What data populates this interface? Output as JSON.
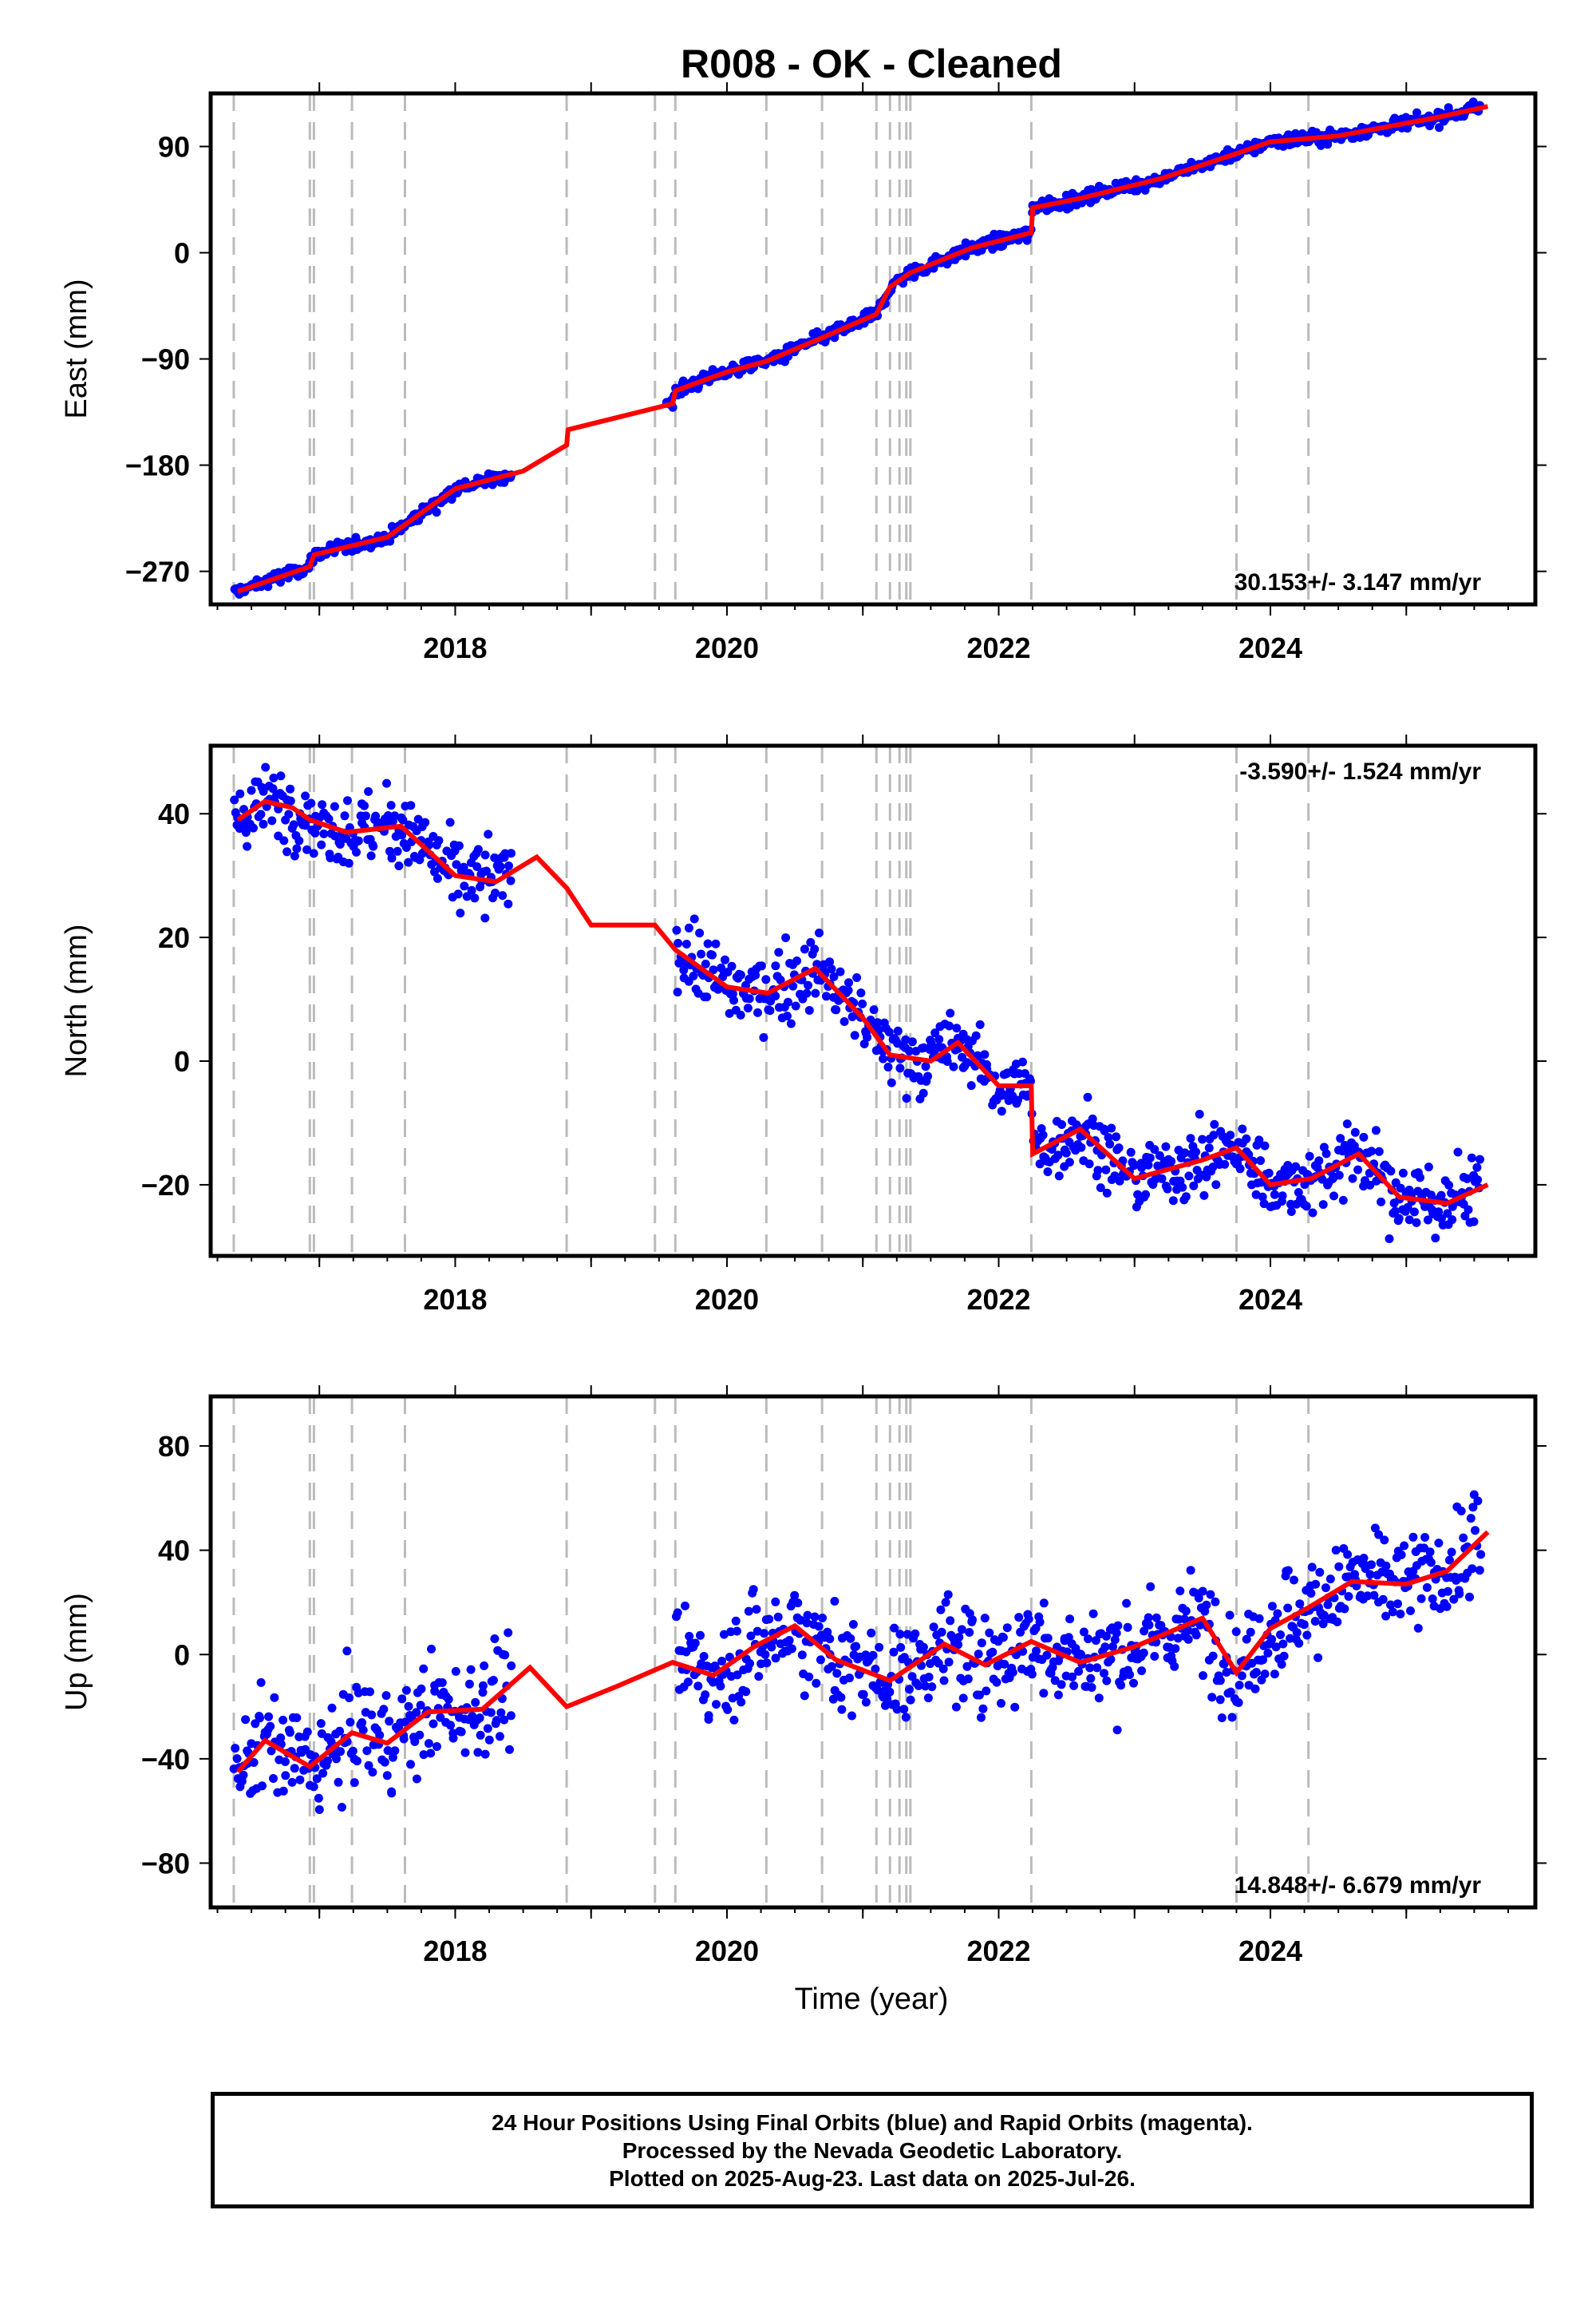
{
  "title": "R008  - OK - Cleaned",
  "xlabel": "Time (year)",
  "caption": [
    "24 Hour Positions Using Final Orbits (blue) and Rapid Orbits (magenta).",
    "Processed by the Nevada Geodetic Laboratory.",
    "Plotted on 2025-Aug-23. Last data on 2025-Jul-26."
  ],
  "colors": {
    "data": "#0000ff",
    "model": "#ff0000",
    "events": "#bbbbbb",
    "frame": "#000000"
  },
  "chart_data": [
    {
      "type": "scatter",
      "ylabel": "East (mm)",
      "rate_label": "30.153+/- 3.147 mm/yr",
      "rate_position": "bottom-right",
      "xlim": [
        2016.2,
        2025.95
      ],
      "ylim": [
        -298,
        135
      ],
      "x_ticks": [
        "2018",
        "2020",
        "2022",
        "2024"
      ],
      "y_ticks": [
        "90",
        "0",
        "−90",
        "−180",
        "−270"
      ],
      "y_tick_values": [
        90,
        0,
        -90,
        -180,
        -270
      ],
      "event_lines": [
        2016.37,
        2016.93,
        2016.96,
        2017.24,
        2017.63,
        2018.82,
        2019.47,
        2019.62,
        2020.29,
        2020.7,
        2021.1,
        2021.2,
        2021.27,
        2021.32,
        2021.35,
        2022.24,
        2023.75,
        2024.28
      ],
      "model": [
        [
          2016.4,
          -287
        ],
        [
          2016.93,
          -266
        ],
        [
          2016.96,
          -256
        ],
        [
          2017.5,
          -241
        ],
        [
          2018.0,
          -200
        ],
        [
          2018.5,
          -185
        ],
        [
          2018.82,
          -163
        ],
        [
          2018.83,
          -150
        ],
        [
          2019.6,
          -128
        ],
        [
          2019.62,
          -117
        ],
        [
          2020.0,
          -101
        ],
        [
          2020.29,
          -92
        ],
        [
          2020.7,
          -72
        ],
        [
          2021.1,
          -52
        ],
        [
          2021.2,
          -29
        ],
        [
          2021.35,
          -17
        ],
        [
          2021.8,
          4
        ],
        [
          2022.24,
          17
        ],
        [
          2022.25,
          38
        ],
        [
          2022.6,
          46
        ],
        [
          2023.2,
          63
        ],
        [
          2023.75,
          84
        ],
        [
          2024.0,
          94
        ],
        [
          2024.5,
          99
        ],
        [
          2025.2,
          114
        ],
        [
          2025.6,
          124
        ]
      ],
      "clusters": [
        [
          2016.37,
          2018.42,
          -286,
          -170,
          5
        ],
        [
          2019.5,
          2025.55,
          -125,
          128,
          5
        ]
      ]
    },
    {
      "type": "scatter",
      "ylabel": "North (mm)",
      "rate_label": "-3.590+/- 1.524 mm/yr",
      "rate_position": "top-right",
      "xlim": [
        2016.2,
        2025.95
      ],
      "ylim": [
        -31.5,
        51
      ],
      "x_ticks": [
        "2018",
        "2020",
        "2022",
        "2024"
      ],
      "y_ticks": [
        "40",
        "20",
        "0",
        "−20"
      ],
      "y_tick_values": [
        40,
        20,
        0,
        -20
      ],
      "event_lines": [
        2016.37,
        2016.93,
        2016.96,
        2017.24,
        2017.63,
        2018.82,
        2019.47,
        2019.62,
        2020.29,
        2020.7,
        2021.1,
        2021.2,
        2021.27,
        2021.32,
        2021.35,
        2022.24,
        2023.75,
        2024.28
      ],
      "model": [
        [
          2016.4,
          39
        ],
        [
          2016.6,
          42
        ],
        [
          2016.8,
          41
        ],
        [
          2016.93,
          39
        ],
        [
          2017.2,
          37
        ],
        [
          2017.6,
          38
        ],
        [
          2018.0,
          30
        ],
        [
          2018.3,
          29
        ],
        [
          2018.6,
          33
        ],
        [
          2018.82,
          28
        ],
        [
          2019.0,
          22
        ],
        [
          2019.47,
          22
        ],
        [
          2019.62,
          18
        ],
        [
          2020.0,
          12
        ],
        [
          2020.3,
          11
        ],
        [
          2020.65,
          15
        ],
        [
          2021.0,
          7
        ],
        [
          2021.2,
          1
        ],
        [
          2021.5,
          0
        ],
        [
          2021.7,
          3
        ],
        [
          2022.0,
          -4
        ],
        [
          2022.24,
          -4
        ],
        [
          2022.25,
          -15
        ],
        [
          2022.6,
          -11
        ],
        [
          2023.0,
          -19
        ],
        [
          2023.5,
          -16
        ],
        [
          2023.75,
          -14
        ],
        [
          2024.0,
          -20
        ],
        [
          2024.3,
          -19
        ],
        [
          2024.65,
          -15
        ],
        [
          2024.95,
          -22
        ],
        [
          2025.3,
          -23
        ],
        [
          2025.6,
          -20
        ]
      ],
      "clusters": [
        [
          2016.37,
          2018.42,
          23,
          45,
          5
        ],
        [
          2019.62,
          2025.55,
          -27,
          17,
          5
        ]
      ]
    },
    {
      "type": "scatter",
      "ylabel": "Up (mm)",
      "rate_label": "14.848+/- 6.679 mm/yr",
      "rate_position": "bottom-right",
      "xlim": [
        2016.2,
        2025.95
      ],
      "ylim": [
        -97,
        99
      ],
      "x_ticks": [
        "2018",
        "2020",
        "2022",
        "2024"
      ],
      "y_ticks": [
        "80",
        "40",
        "0",
        "−40",
        "−80"
      ],
      "y_tick_values": [
        80,
        40,
        0,
        -40,
        -80
      ],
      "event_lines": [
        2016.37,
        2016.93,
        2016.96,
        2017.24,
        2017.63,
        2018.82,
        2019.47,
        2019.62,
        2020.29,
        2020.7,
        2021.1,
        2021.2,
        2021.27,
        2021.32,
        2021.35,
        2022.24,
        2023.75,
        2024.28
      ],
      "model": [
        [
          2016.4,
          -45
        ],
        [
          2016.6,
          -33
        ],
        [
          2016.93,
          -43
        ],
        [
          2017.24,
          -30
        ],
        [
          2017.5,
          -34
        ],
        [
          2017.8,
          -22
        ],
        [
          2018.2,
          -21
        ],
        [
          2018.55,
          -5
        ],
        [
          2018.82,
          -20
        ],
        [
          2019.2,
          -12
        ],
        [
          2019.6,
          -3
        ],
        [
          2019.9,
          -8
        ],
        [
          2020.2,
          3
        ],
        [
          2020.5,
          11
        ],
        [
          2020.8,
          -2
        ],
        [
          2021.2,
          -10
        ],
        [
          2021.6,
          4
        ],
        [
          2021.9,
          -4
        ],
        [
          2022.24,
          5
        ],
        [
          2022.6,
          -3
        ],
        [
          2023.0,
          3
        ],
        [
          2023.5,
          14
        ],
        [
          2023.75,
          -7
        ],
        [
          2024.0,
          10
        ],
        [
          2024.28,
          18
        ],
        [
          2024.6,
          28
        ],
        [
          2025.0,
          27
        ],
        [
          2025.3,
          32
        ],
        [
          2025.6,
          47
        ]
      ],
      "clusters": [
        [
          2016.37,
          2018.42,
          -90,
          50,
          17
        ],
        [
          2019.62,
          2025.55,
          -45,
          94,
          17
        ]
      ]
    }
  ]
}
